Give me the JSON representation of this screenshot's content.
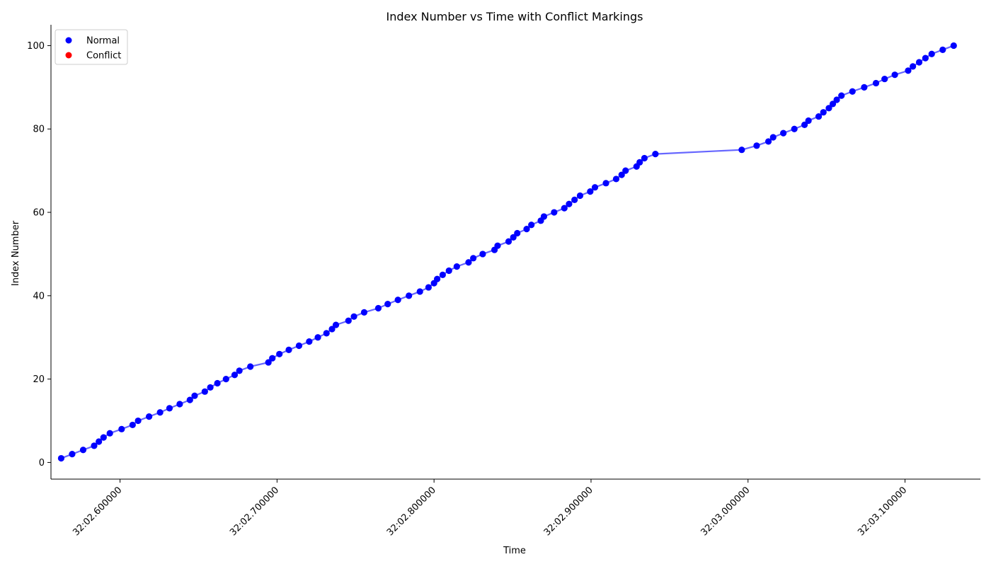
{
  "chart_data": {
    "type": "scatter",
    "title": "Index Number vs Time with Conflict Markings",
    "xlabel": "Time",
    "ylabel": "Index Number",
    "xlim": [
      "32:02.556",
      "32:03.148"
    ],
    "ylim": [
      -4,
      105
    ],
    "x_ticks": [
      "32:02.600000",
      "32:02.700000",
      "32:02.800000",
      "32:02.900000",
      "32:03.000000",
      "32:03.100000"
    ],
    "y_ticks": [
      0,
      20,
      40,
      60,
      80,
      100
    ],
    "grid": false,
    "legend_position": "top-left",
    "legend": [
      {
        "label": "Normal",
        "color": "#0000ff"
      },
      {
        "label": "Conflict",
        "color": "#ff0000"
      }
    ],
    "line_color": "#0000ff",
    "series": [
      {
        "name": "Normal",
        "color": "#0000ff",
        "points": [
          [
            "32:02.5625",
            1
          ],
          [
            "32:02.5695",
            2
          ],
          [
            "32:02.5765",
            3
          ],
          [
            "32:02.5835",
            4
          ],
          [
            "32:02.5865",
            5
          ],
          [
            "32:02.5895",
            6
          ],
          [
            "32:02.5935",
            7
          ],
          [
            "32:02.6010",
            8
          ],
          [
            "32:02.6080",
            9
          ],
          [
            "32:02.6115",
            10
          ],
          [
            "32:02.6185",
            11
          ],
          [
            "32:02.6255",
            12
          ],
          [
            "32:02.6315",
            13
          ],
          [
            "32:02.6380",
            14
          ],
          [
            "32:02.6445",
            15
          ],
          [
            "32:02.6475",
            16
          ],
          [
            "32:02.6540",
            17
          ],
          [
            "32:02.6575",
            18
          ],
          [
            "32:02.6620",
            19
          ],
          [
            "32:02.6675",
            20
          ],
          [
            "32:02.6730",
            21
          ],
          [
            "32:02.6760",
            22
          ],
          [
            "32:02.6830",
            23
          ],
          [
            "32:02.6945",
            24
          ],
          [
            "32:02.6970",
            25
          ],
          [
            "32:02.7015",
            26
          ],
          [
            "32:02.7075",
            27
          ],
          [
            "32:02.7140",
            28
          ],
          [
            "32:02.7205",
            29
          ],
          [
            "32:02.7260",
            30
          ],
          [
            "32:02.7315",
            31
          ],
          [
            "32:02.7350",
            32
          ],
          [
            "32:02.7375",
            33
          ],
          [
            "32:02.7455",
            34
          ],
          [
            "32:02.7490",
            35
          ],
          [
            "32:02.7555",
            36
          ],
          [
            "32:02.7645",
            37
          ],
          [
            "32:02.7705",
            38
          ],
          [
            "32:02.7770",
            39
          ],
          [
            "32:02.7840",
            40
          ],
          [
            "32:02.7910",
            41
          ],
          [
            "32:02.7965",
            42
          ],
          [
            "32:02.8000",
            43
          ],
          [
            "32:02.8020",
            44
          ],
          [
            "32:02.8055",
            45
          ],
          [
            "32:02.8095",
            46
          ],
          [
            "32:02.8145",
            47
          ],
          [
            "32:02.8220",
            48
          ],
          [
            "32:02.8250",
            49
          ],
          [
            "32:02.8310",
            50
          ],
          [
            "32:02.8385",
            51
          ],
          [
            "32:02.8405",
            52
          ],
          [
            "32:02.8475",
            53
          ],
          [
            "32:02.8505",
            54
          ],
          [
            "32:02.8530",
            55
          ],
          [
            "32:02.8590",
            56
          ],
          [
            "32:02.8620",
            57
          ],
          [
            "32:02.8680",
            58
          ],
          [
            "32:02.8700",
            59
          ],
          [
            "32:02.8765",
            60
          ],
          [
            "32:02.8830",
            61
          ],
          [
            "32:02.8860",
            62
          ],
          [
            "32:02.8895",
            63
          ],
          [
            "32:02.8930",
            64
          ],
          [
            "32:02.8995",
            65
          ],
          [
            "32:02.9025",
            66
          ],
          [
            "32:02.9095",
            67
          ],
          [
            "32:02.9160",
            68
          ],
          [
            "32:02.9195",
            69
          ],
          [
            "32:02.9220",
            70
          ],
          [
            "32:02.9290",
            71
          ],
          [
            "32:02.9310",
            72
          ],
          [
            "32:02.9340",
            73
          ],
          [
            "32:02.9410",
            74
          ],
          [
            "32:02.9960",
            75
          ],
          [
            "32:03.0055",
            76
          ],
          [
            "32:03.0130",
            77
          ],
          [
            "32:03.0160",
            78
          ],
          [
            "32:03.0225",
            79
          ],
          [
            "32:03.0295",
            80
          ],
          [
            "32:03.0360",
            81
          ],
          [
            "32:03.0385",
            82
          ],
          [
            "32:03.0450",
            83
          ],
          [
            "32:03.0480",
            84
          ],
          [
            "32:03.0515",
            85
          ],
          [
            "32:03.0540",
            86
          ],
          [
            "32:03.0565",
            87
          ],
          [
            "32:03.0595",
            88
          ],
          [
            "32:03.0665",
            89
          ],
          [
            "32:03.0740",
            90
          ],
          [
            "32:03.0815",
            91
          ],
          [
            "32:03.0870",
            92
          ],
          [
            "32:03.0935",
            93
          ],
          [
            "32:03.1020",
            94
          ],
          [
            "32:03.1050",
            95
          ],
          [
            "32:03.1090",
            96
          ],
          [
            "32:03.1130",
            97
          ],
          [
            "32:03.1170",
            98
          ],
          [
            "32:03.1240",
            99
          ],
          [
            "32:03.1310",
            100
          ]
        ]
      },
      {
        "name": "Conflict",
        "color": "#ff0000",
        "points": []
      }
    ]
  }
}
